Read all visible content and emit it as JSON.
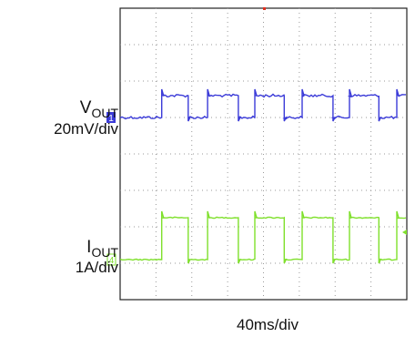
{
  "chart_data": {
    "type": "line",
    "title": "",
    "grid": true,
    "divisions": {
      "x": 8,
      "y": 8
    },
    "time_per_div": "40ms/div",
    "channels": [
      {
        "id": "1",
        "name": "V",
        "subscript": "OUT",
        "scale": "20mV/div",
        "color": "#3b3bd8",
        "marker_level_div": 5.0,
        "high_level_div": 5.6,
        "low_level_div": 5.0,
        "transitions_div": [
          1.16,
          1.9,
          2.44,
          3.3,
          3.76,
          4.58,
          5.08,
          5.94,
          6.4,
          7.22,
          7.72
        ]
      },
      {
        "id": "4",
        "name": "I",
        "subscript": "OUT",
        "scale": "1A/div",
        "color": "#7fe02c",
        "marker_level_div": 1.1,
        "high_level_div": 2.25,
        "low_level_div": 1.1,
        "transitions_div": [
          1.16,
          1.9,
          2.44,
          3.3,
          3.76,
          4.58,
          5.08,
          5.94,
          6.4,
          7.22,
          7.72
        ]
      }
    ]
  }
}
